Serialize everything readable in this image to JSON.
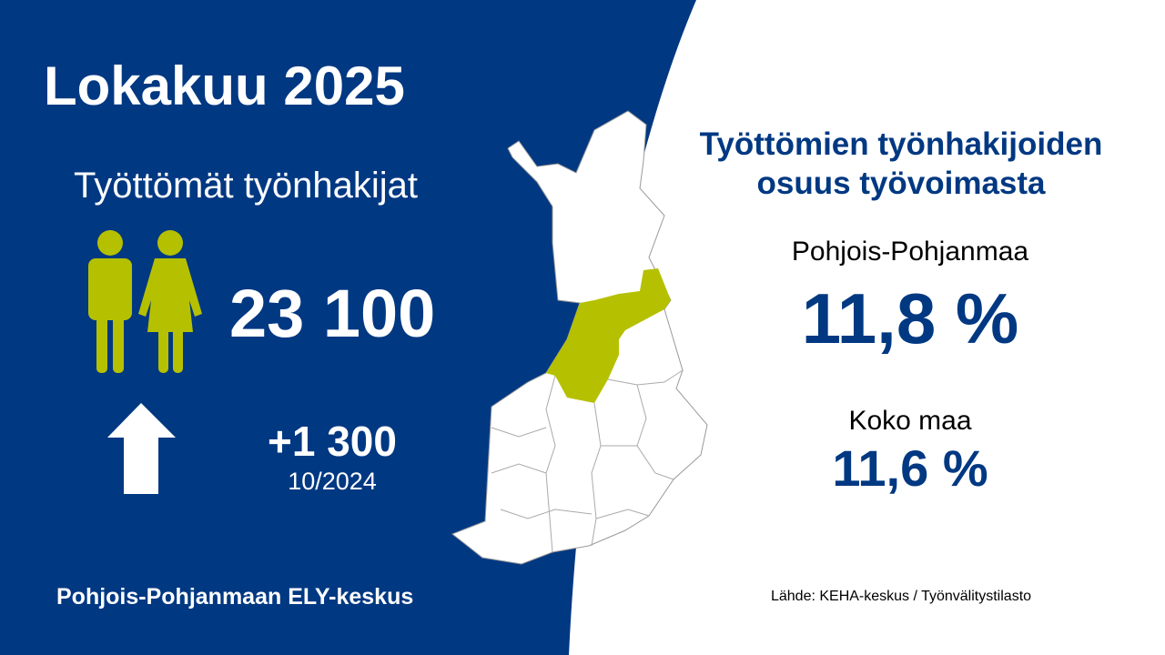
{
  "colors": {
    "background_blue": "#003882",
    "highlight_green": "#b5c000",
    "text_blue": "#003882"
  },
  "left": {
    "title": "Lokakuu 2025",
    "subtitle": "Työttömät työnhakijat",
    "people_icon": "man-woman-icon",
    "count": "23 100",
    "trend_icon": "arrow-up-icon",
    "change": "+1 300",
    "comparison_period": "10/2024",
    "organization": "Pohjois-Pohjanmaan ELY-keskus"
  },
  "map": {
    "highlighted_region": "Pohjois-Pohjanmaa"
  },
  "right": {
    "title_line1": "Työttömien työnhakijoiden",
    "title_line2": "osuus työvoimasta",
    "region_label": "Pohjois-Pohjanmaa",
    "region_value": "11,8 %",
    "country_label": "Koko maa",
    "country_value": "11,6 %",
    "source": "Lähde: KEHA-keskus / Työnvälitystilasto"
  }
}
